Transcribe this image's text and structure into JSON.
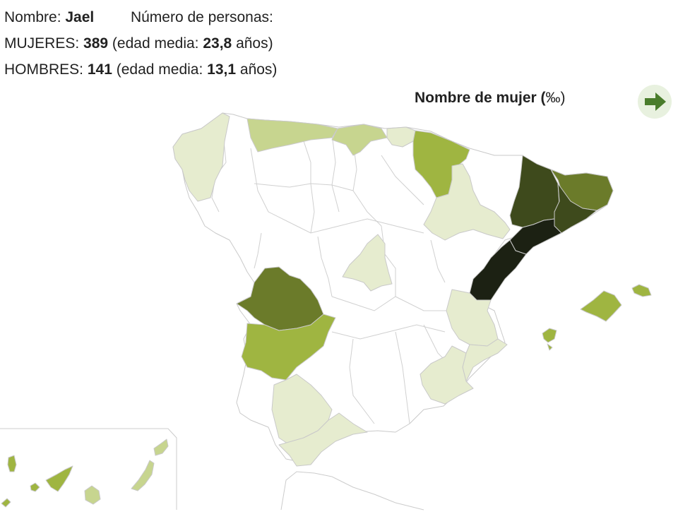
{
  "summary": {
    "name_label": "Nombre:",
    "name_value": "Jael",
    "count_label": "Número de personas:",
    "women_label": "MUJERES:",
    "women_count": "389",
    "women_age_prefix": "(edad media:",
    "women_age": "23,8",
    "age_suffix": "años)",
    "men_label": "HOMBRES:",
    "men_count": "141",
    "men_age_prefix": "(edad media:",
    "men_age": "13,1"
  },
  "legend": {
    "title_bold": "Nombre de mujer (",
    "title_unit": "‰)"
  },
  "next_button": {
    "icon": "arrow-right-icon",
    "color": "#4a7d2c"
  },
  "palette": {
    "none": "#ffffff",
    "level1": "#e6eccf",
    "level2": "#c7d58f",
    "level3": "#9fb541",
    "level4": "#6b7b2a",
    "level5": "#3e4a1c",
    "level6": "#1c2113"
  },
  "regions": [
    {
      "id": "galicia",
      "level": "level1"
    },
    {
      "id": "asturias",
      "level": "level2"
    },
    {
      "id": "cantabria",
      "level": "level2"
    },
    {
      "id": "pais-vasco",
      "level": "level1"
    },
    {
      "id": "navarra",
      "level": "level3"
    },
    {
      "id": "aragon-huesca",
      "level": "level1"
    },
    {
      "id": "lleida",
      "level": "level5"
    },
    {
      "id": "girona",
      "level": "level4"
    },
    {
      "id": "barcelona",
      "level": "level5"
    },
    {
      "id": "tarragona",
      "level": "level6"
    },
    {
      "id": "castellon",
      "level": "level6"
    },
    {
      "id": "valencia",
      "level": "level1"
    },
    {
      "id": "alicante",
      "level": "level1"
    },
    {
      "id": "murcia",
      "level": "level1"
    },
    {
      "id": "madrid",
      "level": "level1"
    },
    {
      "id": "caceres",
      "level": "level4"
    },
    {
      "id": "badajoz",
      "level": "level3"
    },
    {
      "id": "andalucia-w",
      "level": "level1"
    },
    {
      "id": "malaga",
      "level": "level1"
    },
    {
      "id": "mallorca",
      "level": "level3"
    },
    {
      "id": "menorca",
      "level": "level3"
    },
    {
      "id": "ibiza",
      "level": "level3"
    },
    {
      "id": "tenerife",
      "level": "level3"
    },
    {
      "id": "la-palma",
      "level": "level3"
    },
    {
      "id": "gran-canaria",
      "level": "level2"
    },
    {
      "id": "fuerteventura",
      "level": "level2"
    },
    {
      "id": "lanzarote",
      "level": "level2"
    },
    {
      "id": "la-gomera",
      "level": "level3"
    },
    {
      "id": "el-hierro",
      "level": "level3"
    }
  ]
}
